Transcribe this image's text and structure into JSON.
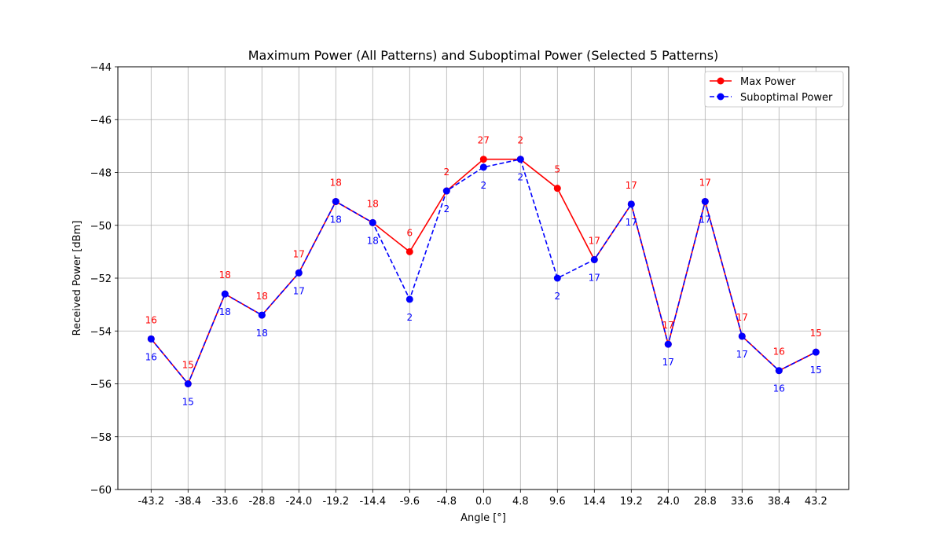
{
  "chart_data": {
    "type": "line",
    "title": "Maximum Power (All Patterns) and Suboptimal Power (Selected 5 Patterns)",
    "xlabel": "Angle [°]",
    "ylabel": "Received Power [dBm]",
    "categories": [
      "-43.2",
      "-38.4",
      "-33.6",
      "-28.8",
      "-24.0",
      "-19.2",
      "-14.4",
      "-9.6",
      "-4.8",
      "0.0",
      "4.8",
      "9.6",
      "14.4",
      "19.2",
      "24.0",
      "28.8",
      "33.6",
      "38.4",
      "43.2"
    ],
    "yticks": [
      "−60",
      "−58",
      "−56",
      "−54",
      "−52",
      "−50",
      "−48",
      "−46",
      "−44"
    ],
    "ylim": [
      -60,
      -44
    ],
    "grid": true,
    "legend_position": "top-right",
    "series": [
      {
        "name": "Max Power",
        "color": "#ff0000",
        "style": "solid",
        "values": [
          -54.3,
          -56.0,
          -52.6,
          -53.4,
          -51.8,
          -49.1,
          -49.9,
          -51.0,
          -48.7,
          -47.5,
          -47.5,
          -48.6,
          -51.3,
          -49.2,
          -54.5,
          -49.1,
          -54.2,
          -55.5,
          -54.8
        ],
        "labels": [
          "16",
          "15",
          "18",
          "18",
          "17",
          "18",
          "18",
          "6",
          "2",
          "27",
          "2",
          "5",
          "17",
          "17",
          "17",
          "17",
          "17",
          "16",
          "15"
        ]
      },
      {
        "name": "Suboptimal Power",
        "color": "#0000ff",
        "style": "dashed",
        "values": [
          -54.3,
          -56.0,
          -52.6,
          -53.4,
          -51.8,
          -49.1,
          -49.9,
          -52.8,
          -48.7,
          -47.8,
          -47.5,
          -52.0,
          -51.3,
          -49.2,
          -54.5,
          -49.1,
          -54.2,
          -55.5,
          -54.8
        ],
        "labels": [
          "16",
          "15",
          "18",
          "18",
          "17",
          "18",
          "18",
          "2",
          "2",
          "2",
          "2",
          "2",
          "17",
          "17",
          "17",
          "17",
          "17",
          "16",
          "15"
        ]
      }
    ]
  }
}
